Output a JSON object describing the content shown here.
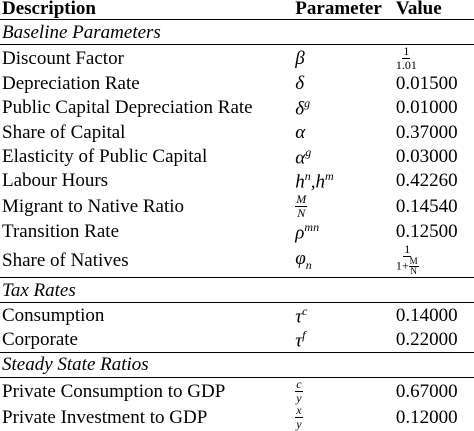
{
  "header": {
    "description": "Description",
    "parameter": "Parameter",
    "value": "Value"
  },
  "sections": [
    {
      "title": "Baseline Parameters",
      "rows": [
        {
          "description": "Discount Factor",
          "parameter": "β",
          "value": {
            "num": "1",
            "den": "1.01"
          }
        },
        {
          "description": "Depreciation Rate",
          "parameter": "δ",
          "value": "0.01500"
        },
        {
          "description": "Public Capital Depreciation Rate",
          "parameter": {
            "base": "δ",
            "sup": "g"
          },
          "value": "0.01000"
        },
        {
          "description": "Share of Capital",
          "parameter": "α",
          "value": "0.37000"
        },
        {
          "description": "Elasticity of Public Capital",
          "parameter": {
            "base": "α",
            "sup": "g"
          },
          "value": "0.03000"
        },
        {
          "description": "Labour Hours",
          "parameter": [
            {
              "base": "h",
              "sup": "n"
            },
            ",",
            {
              "base": "h",
              "sup": "m"
            }
          ],
          "value": "0.42260"
        },
        {
          "description": "Migrant to Native Ratio",
          "parameter": {
            "num": "M",
            "den": "N"
          },
          "value": "0.14540"
        },
        {
          "description": "Transition Rate",
          "parameter": {
            "base": "ρ",
            "sup": "mn"
          },
          "value": "0.12500"
        },
        {
          "description": "Share of Natives",
          "parameter": {
            "base": "φ",
            "sub": "n"
          },
          "value": {
            "num": "1",
            "den": [
              "1+",
              {
                "num": "M",
                "den": "N"
              }
            ]
          }
        }
      ]
    },
    {
      "title": "Tax Rates",
      "rows": [
        {
          "description": "Consumption",
          "parameter": {
            "base": "τ",
            "sup": "c"
          },
          "value": "0.14000"
        },
        {
          "description": "Corporate",
          "parameter": {
            "base": "τ",
            "sup": "f"
          },
          "value": "0.22000"
        }
      ]
    },
    {
      "title": "Steady State Ratios",
      "rows": [
        {
          "description": "Private Consumption to GDP",
          "parameter": {
            "num": "c",
            "den": "y"
          },
          "value": "0.67000"
        },
        {
          "description": "Private Investment to GDP",
          "parameter": {
            "num": "x",
            "den": "y"
          },
          "value": "0.12000"
        }
      ]
    }
  ]
}
